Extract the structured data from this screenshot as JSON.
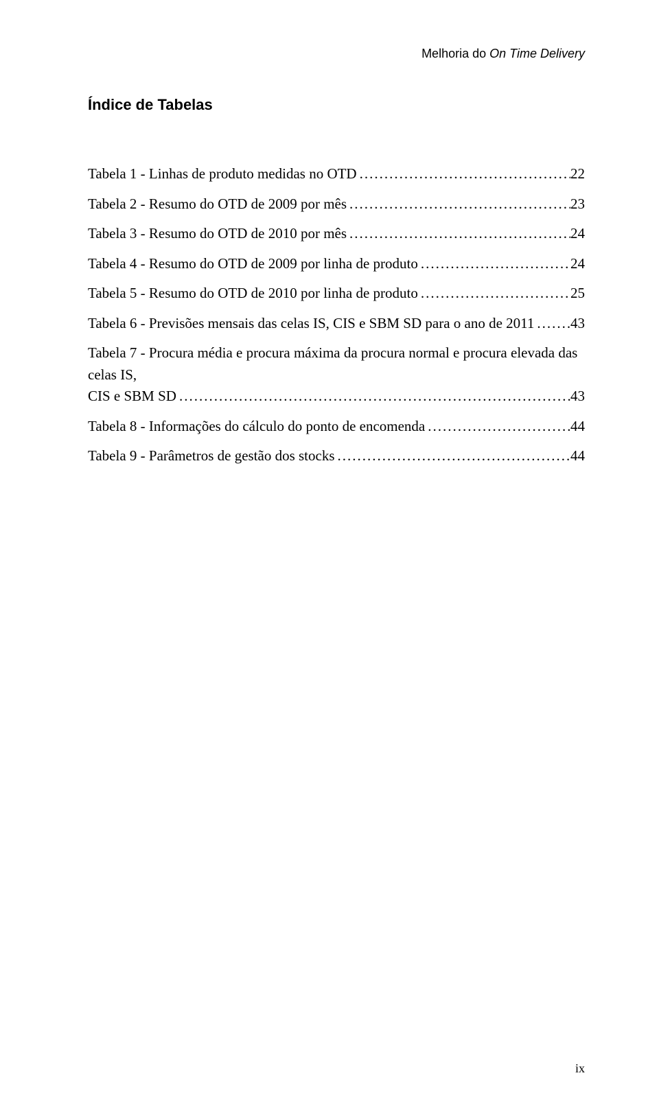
{
  "header": {
    "prefix": "Melhoria do ",
    "italic": "On Time Delivery"
  },
  "section_title": "Índice de Tabelas",
  "leader_fill": "........................................................................................................................................................................................................",
  "toc": [
    {
      "label": "Tabela 1 - Linhas de produto medidas no OTD",
      "page": "22",
      "multi": false
    },
    {
      "label": "Tabela 2 - Resumo do OTD de 2009 por mês",
      "page": "23",
      "multi": false
    },
    {
      "label": "Tabela 3 - Resumo do OTD de 2010 por mês",
      "page": "24",
      "multi": false
    },
    {
      "label": "Tabela 4 - Resumo do OTD de 2009 por linha de produto",
      "page": "24",
      "multi": false
    },
    {
      "label": "Tabela 5 - Resumo do OTD de 2010 por linha de produto",
      "page": "25",
      "multi": false
    },
    {
      "label": "Tabela 6 - Previsões mensais das celas IS, CIS e SBM SD para o ano de 2011",
      "page": "43",
      "multi": false
    },
    {
      "label_line1": "Tabela 7 - Procura média e procura máxima da procura normal e procura elevada das celas IS,",
      "label_line2": "CIS e SBM SD",
      "page": "43",
      "multi": true
    },
    {
      "label": "Tabela 8 - Informações do cálculo do ponto de encomenda",
      "page": "44",
      "multi": false
    },
    {
      "label": "Tabela 9 - Parâmetros de gestão dos stocks",
      "page": "44",
      "multi": false
    }
  ],
  "page_number": "ix"
}
